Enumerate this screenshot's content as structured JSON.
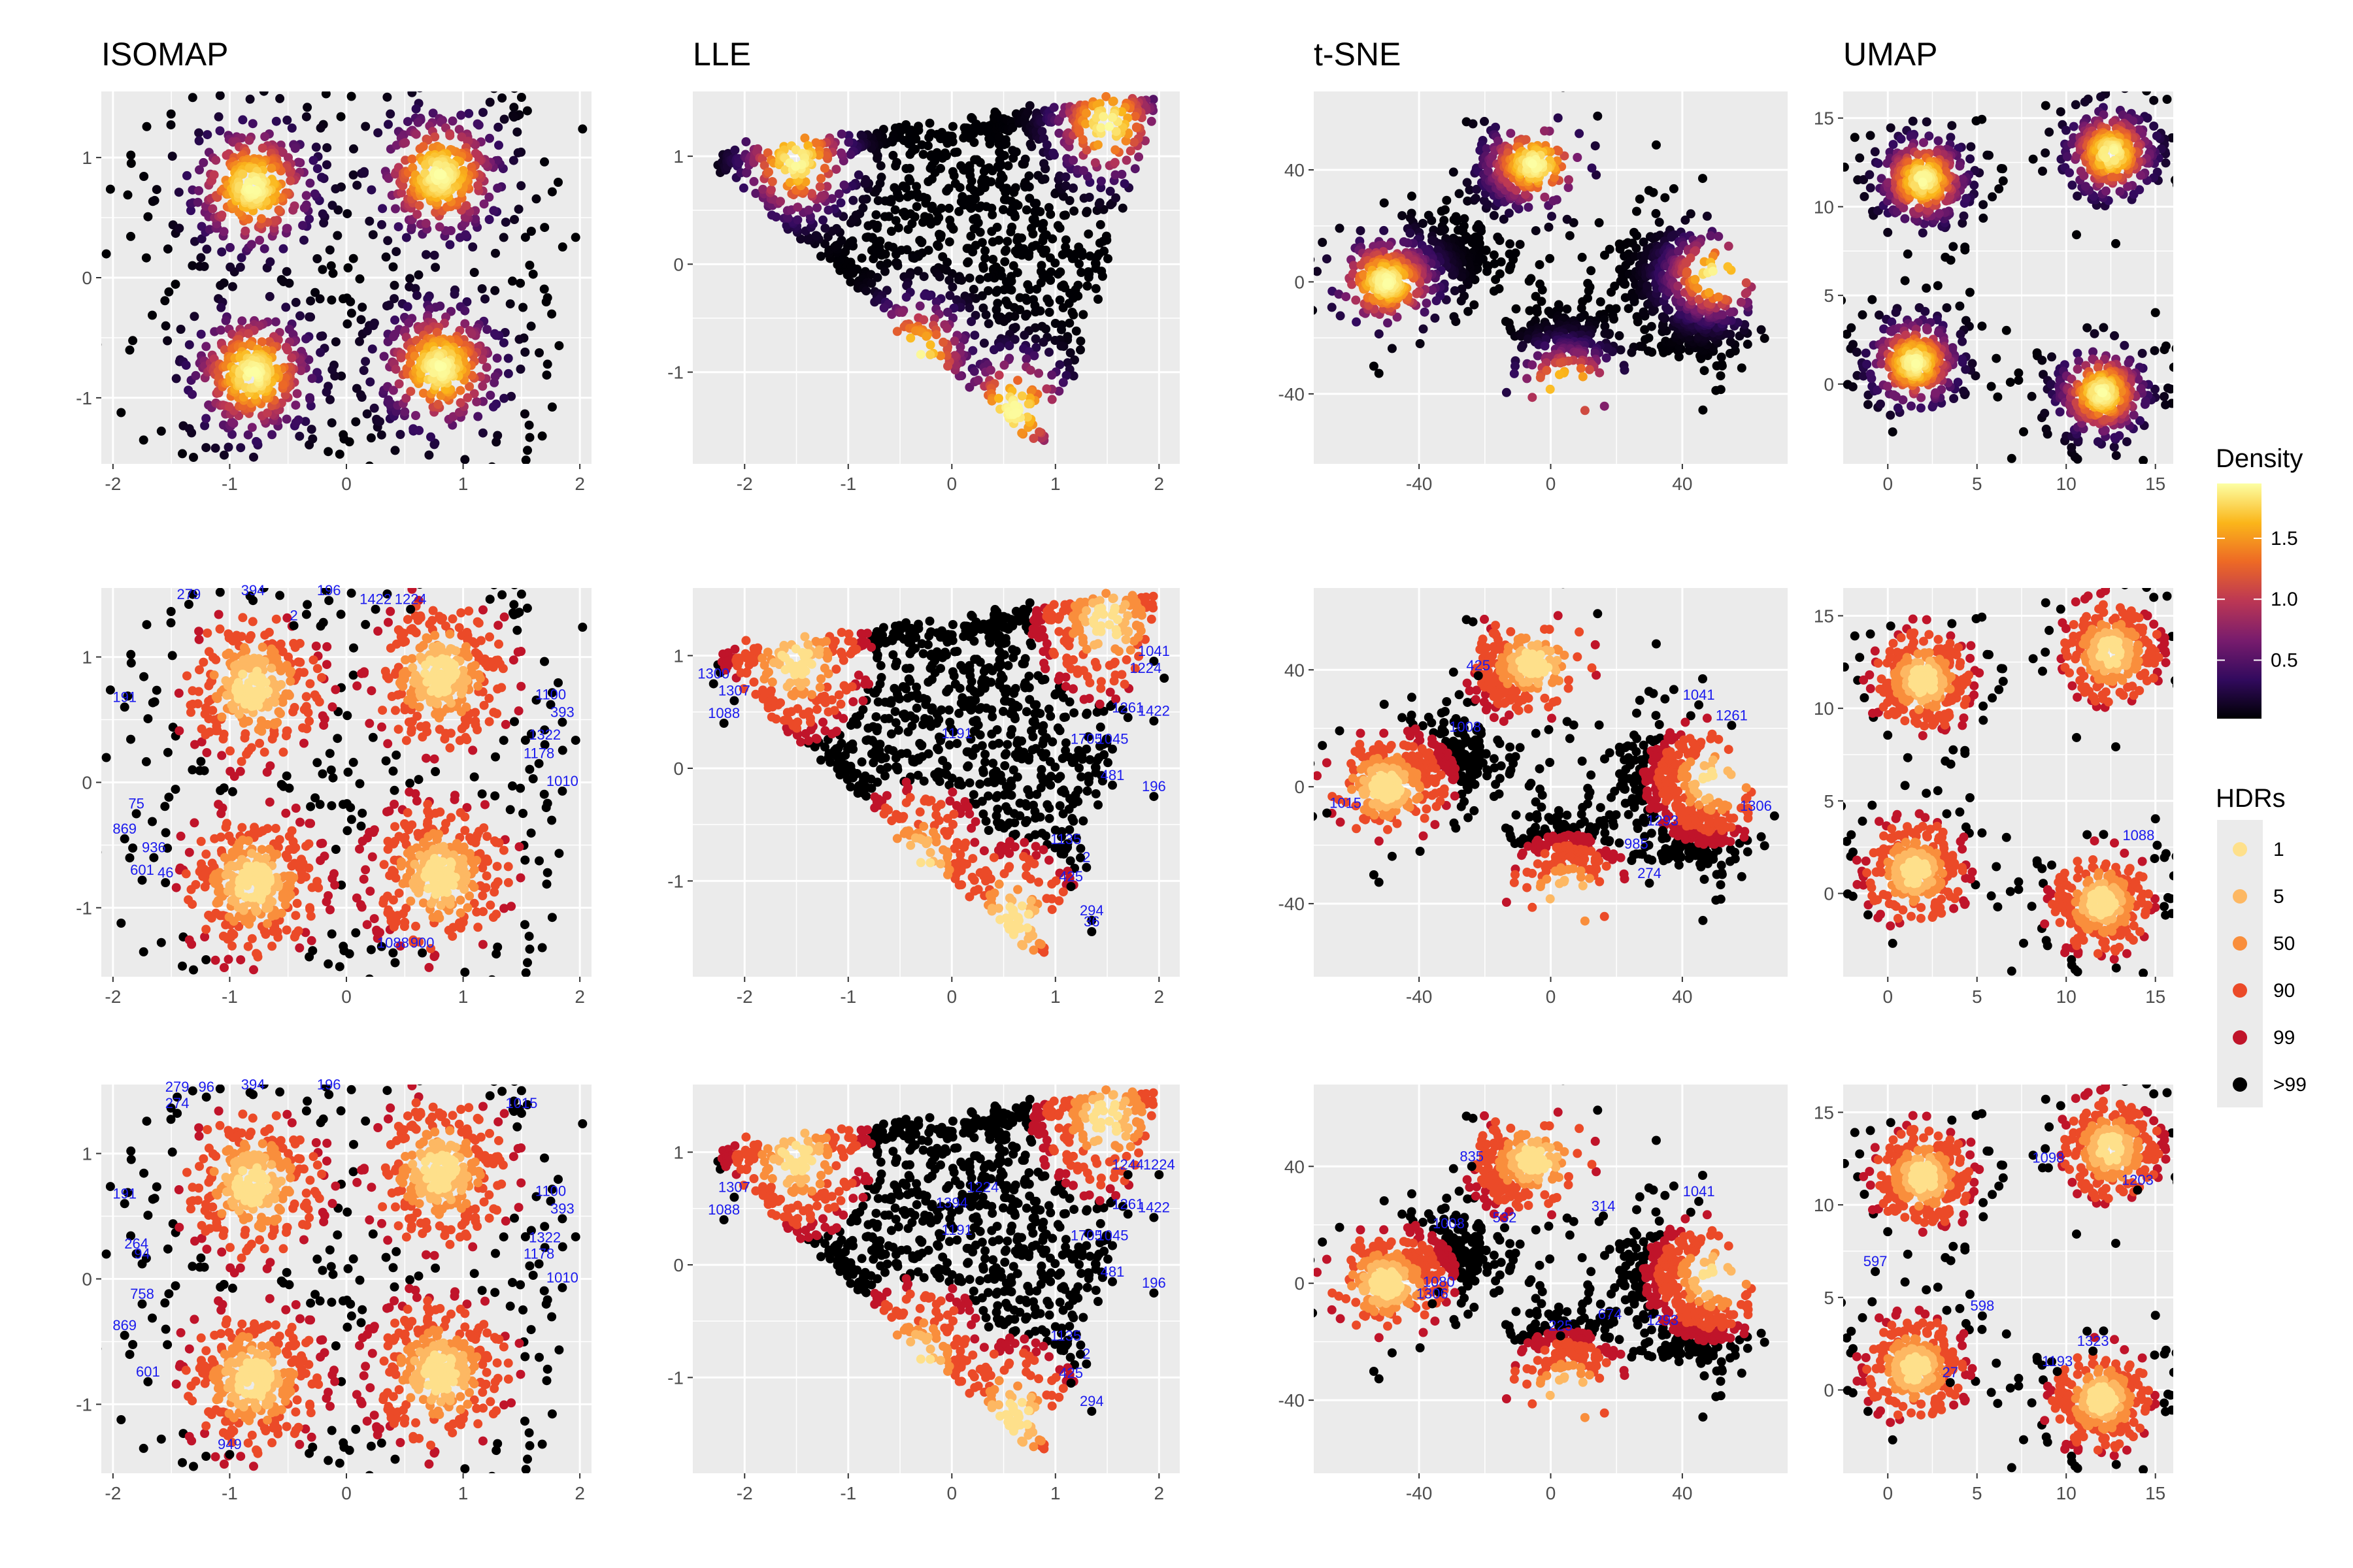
{
  "column_titles": [
    "ISOMAP",
    "LLE",
    "t-SNE",
    "UMAP"
  ],
  "legend": {
    "density_title": "Density",
    "density_ticks": [
      "1.5",
      "1.0",
      "0.5"
    ],
    "density_tick_values": [
      1.5,
      1.0,
      0.5
    ],
    "density_range": [
      0.02,
      1.95
    ],
    "density_gradient": [
      "#000004",
      "#320a5e",
      "#781c6d",
      "#bc3754",
      "#ed6925",
      "#fbb61a",
      "#fcffa4"
    ],
    "hdr_title": "HDRs",
    "hdr_levels": [
      {
        "label": "1",
        "color": "#fee08b"
      },
      {
        "label": "5",
        "color": "#fdb863"
      },
      {
        "label": "50",
        "color": "#f98e3c"
      },
      {
        "label": "90",
        "color": "#eb4a28"
      },
      {
        "label": "99",
        "color": "#c0142a"
      },
      {
        "label": ">99",
        "color": "#000000"
      }
    ]
  },
  "chart_data": [
    {
      "type": "scatter",
      "row": 0,
      "col": 0,
      "title": "ISOMAP",
      "color_mode": "density",
      "xlim": [
        -2.1,
        2.1
      ],
      "ylim": [
        -1.55,
        1.55
      ],
      "xticks": [
        -2,
        -1,
        0,
        1,
        2
      ],
      "xtick_labels": [
        "-2",
        "-1",
        "0",
        "1",
        "2"
      ],
      "yticks": [
        -1,
        0,
        1
      ],
      "ytick_labels": [
        "-1",
        "0",
        "1"
      ],
      "point_labels": []
    },
    {
      "type": "scatter",
      "row": 0,
      "col": 1,
      "title": "LLE",
      "color_mode": "density",
      "xlim": [
        -2.5,
        2.2
      ],
      "ylim": [
        -1.85,
        1.6
      ],
      "xticks": [
        -2,
        -1,
        0,
        1,
        2
      ],
      "xtick_labels": [
        "-2",
        "-1",
        "0",
        "1",
        "2"
      ],
      "yticks": [
        -1,
        0,
        1
      ],
      "ytick_labels": [
        "-1",
        "0",
        "1"
      ],
      "point_labels": []
    },
    {
      "type": "scatter",
      "row": 0,
      "col": 2,
      "title": "t-SNE",
      "color_mode": "density",
      "xlim": [
        -72,
        72
      ],
      "ylim": [
        -65,
        68
      ],
      "xticks": [
        -40,
        0,
        40
      ],
      "xtick_labels": [
        "-40",
        "0",
        "40"
      ],
      "yticks": [
        -40,
        0,
        40
      ],
      "ytick_labels": [
        "-40",
        "0",
        "40"
      ],
      "point_labels": []
    },
    {
      "type": "scatter",
      "row": 0,
      "col": 3,
      "title": "UMAP",
      "color_mode": "density",
      "xlim": [
        -2.5,
        16
      ],
      "ylim": [
        -4.5,
        16.5
      ],
      "xticks": [
        0,
        5,
        10,
        15
      ],
      "xtick_labels": [
        "0",
        "5",
        "10",
        "15"
      ],
      "yticks": [
        0,
        5,
        10,
        15
      ],
      "ytick_labels": [
        "0",
        "5",
        "10",
        "15"
      ],
      "point_labels": []
    },
    {
      "type": "scatter",
      "row": 1,
      "col": 0,
      "color_mode": "hdr",
      "xlim": [
        -2.1,
        2.1
      ],
      "ylim": [
        -1.55,
        1.55
      ],
      "xticks": [
        -2,
        -1,
        0,
        1,
        2
      ],
      "xtick_labels": [
        "-2",
        "-1",
        "0",
        "1",
        "2"
      ],
      "yticks": [
        -1,
        0,
        1
      ],
      "ytick_labels": [
        "-1",
        "0",
        "1"
      ],
      "point_labels": [
        {
          "text": "279",
          "x": -1.35,
          "y": 1.42
        },
        {
          "text": "394",
          "x": -0.8,
          "y": 1.45
        },
        {
          "text": "196",
          "x": -0.15,
          "y": 1.45
        },
        {
          "text": "2",
          "x": -0.45,
          "y": 1.25
        },
        {
          "text": "1422",
          "x": 0.25,
          "y": 1.38
        },
        {
          "text": "1224",
          "x": 0.55,
          "y": 1.38
        },
        {
          "text": "191",
          "x": -1.9,
          "y": 0.6
        },
        {
          "text": "1100",
          "x": 1.75,
          "y": 0.62
        },
        {
          "text": "393",
          "x": 1.85,
          "y": 0.48
        },
        {
          "text": "1322",
          "x": 1.7,
          "y": 0.3
        },
        {
          "text": "1178",
          "x": 1.65,
          "y": 0.15
        },
        {
          "text": "1010",
          "x": 1.85,
          "y": -0.07
        },
        {
          "text": "75",
          "x": -1.8,
          "y": -0.25
        },
        {
          "text": "869",
          "x": -1.9,
          "y": -0.45
        },
        {
          "text": "936",
          "x": -1.65,
          "y": -0.6
        },
        {
          "text": "601",
          "x": -1.75,
          "y": -0.78
        },
        {
          "text": "46",
          "x": -1.55,
          "y": -0.8
        },
        {
          "text": "1088",
          "x": 0.4,
          "y": -1.36
        },
        {
          "text": "900",
          "x": 0.65,
          "y": -1.36
        }
      ]
    },
    {
      "type": "scatter",
      "row": 1,
      "col": 1,
      "color_mode": "hdr",
      "xlim": [
        -2.5,
        2.2
      ],
      "ylim": [
        -1.85,
        1.6
      ],
      "xticks": [
        -2,
        -1,
        0,
        1,
        2
      ],
      "xtick_labels": [
        "-2",
        "-1",
        "0",
        "1",
        "2"
      ],
      "yticks": [
        -1,
        0,
        1
      ],
      "ytick_labels": [
        "-1",
        "0",
        "1"
      ],
      "point_labels": [
        {
          "text": "1300",
          "x": -2.3,
          "y": 0.75
        },
        {
          "text": "1307",
          "x": -2.1,
          "y": 0.6
        },
        {
          "text": "1088",
          "x": -2.2,
          "y": 0.4
        },
        {
          "text": "1191",
          "x": 0.05,
          "y": 0.22
        },
        {
          "text": "1041",
          "x": 1.95,
          "y": 0.95
        },
        {
          "text": "1224",
          "x": 2.05,
          "y": 0.8
        },
        {
          "text": "1261",
          "x": 1.7,
          "y": 0.45
        },
        {
          "text": "1422",
          "x": 1.95,
          "y": 0.42
        },
        {
          "text": "1705",
          "x": 1.3,
          "y": 0.17
        },
        {
          "text": "1045",
          "x": 1.55,
          "y": 0.17
        },
        {
          "text": "481",
          "x": 1.55,
          "y": -0.15
        },
        {
          "text": "196",
          "x": 1.95,
          "y": -0.25
        },
        {
          "text": "1135",
          "x": 1.1,
          "y": -0.72
        },
        {
          "text": "2",
          "x": 1.3,
          "y": -0.88
        },
        {
          "text": "425",
          "x": 1.15,
          "y": -1.05
        },
        {
          "text": "294",
          "x": 1.35,
          "y": -1.35
        },
        {
          "text": "36",
          "x": 1.35,
          "y": -1.45
        }
      ]
    },
    {
      "type": "scatter",
      "row": 1,
      "col": 2,
      "color_mode": "hdr",
      "xlim": [
        -72,
        72
      ],
      "ylim": [
        -65,
        68
      ],
      "xticks": [
        -40,
        0,
        40
      ],
      "xtick_labels": [
        "-40",
        "0",
        "40"
      ],
      "yticks": [
        -40,
        0,
        40
      ],
      "ytick_labels": [
        "-40",
        "0",
        "40"
      ],
      "point_labels": [
        {
          "text": "425",
          "x": -22,
          "y": 38
        },
        {
          "text": "1008",
          "x": -26,
          "y": 17
        },
        {
          "text": "1041",
          "x": 45,
          "y": 28
        },
        {
          "text": "1261",
          "x": 55,
          "y": 21
        },
        {
          "text": "1015",
          "x": -68,
          "y": -9
        },
        {
          "text": "1293",
          "x": 34,
          "y": -15
        },
        {
          "text": "1306",
          "x": 68,
          "y": -10
        },
        {
          "text": "985",
          "x": 26,
          "y": -23
        },
        {
          "text": "274",
          "x": 30,
          "y": -33
        }
      ]
    },
    {
      "type": "scatter",
      "row": 1,
      "col": 3,
      "color_mode": "hdr",
      "xlim": [
        -2.5,
        16
      ],
      "ylim": [
        -4.5,
        16.5
      ],
      "xticks": [
        0,
        5,
        10,
        15
      ],
      "xtick_labels": [
        "0",
        "5",
        "10",
        "15"
      ],
      "yticks": [
        0,
        5,
        10,
        15
      ],
      "ytick_labels": [
        "0",
        "5",
        "10",
        "15"
      ],
      "point_labels": [
        {
          "text": "1088",
          "x": 15.1,
          "y": 2.6
        }
      ]
    },
    {
      "type": "scatter",
      "row": 2,
      "col": 0,
      "color_mode": "hdr",
      "xlim": [
        -2.1,
        2.1
      ],
      "ylim": [
        -1.55,
        1.55
      ],
      "xticks": [
        -2,
        -1,
        0,
        1,
        2
      ],
      "xtick_labels": [
        "-2",
        "-1",
        "0",
        "1",
        "2"
      ],
      "yticks": [
        -1,
        0,
        1
      ],
      "ytick_labels": [
        "-1",
        "0",
        "1"
      ],
      "point_labels": [
        {
          "text": "279",
          "x": -1.45,
          "y": 1.45
        },
        {
          "text": "96",
          "x": -1.2,
          "y": 1.45
        },
        {
          "text": "394",
          "x": -0.8,
          "y": 1.47
        },
        {
          "text": "196",
          "x": -0.15,
          "y": 1.47
        },
        {
          "text": "274",
          "x": -1.45,
          "y": 1.32
        },
        {
          "text": "1015",
          "x": 1.5,
          "y": 1.32
        },
        {
          "text": "191",
          "x": -1.9,
          "y": 0.6
        },
        {
          "text": "1100",
          "x": 1.75,
          "y": 0.62
        },
        {
          "text": "393",
          "x": 1.85,
          "y": 0.48
        },
        {
          "text": "264",
          "x": -1.8,
          "y": 0.2
        },
        {
          "text": "94",
          "x": -1.75,
          "y": 0.12
        },
        {
          "text": "1322",
          "x": 1.7,
          "y": 0.25
        },
        {
          "text": "1178",
          "x": 1.65,
          "y": 0.12
        },
        {
          "text": "1010",
          "x": 1.85,
          "y": -0.07
        },
        {
          "text": "758",
          "x": -1.75,
          "y": -0.2
        },
        {
          "text": "869",
          "x": -1.9,
          "y": -0.45
        },
        {
          "text": "601",
          "x": -1.7,
          "y": -0.82
        },
        {
          "text": "949",
          "x": -1.0,
          "y": -1.4
        }
      ]
    },
    {
      "type": "scatter",
      "row": 2,
      "col": 1,
      "color_mode": "hdr",
      "xlim": [
        -2.5,
        2.2
      ],
      "ylim": [
        -1.85,
        1.6
      ],
      "xticks": [
        -2,
        -1,
        0,
        1,
        2
      ],
      "xtick_labels": [
        "-2",
        "-1",
        "0",
        "1",
        "2"
      ],
      "yticks": [
        -1,
        0,
        1
      ],
      "ytick_labels": [
        "-1",
        "0",
        "1"
      ],
      "point_labels": [
        {
          "text": "1307",
          "x": -2.1,
          "y": 0.6
        },
        {
          "text": "1088",
          "x": -2.2,
          "y": 0.4
        },
        {
          "text": "1224",
          "x": 0.3,
          "y": 0.6
        },
        {
          "text": "1394",
          "x": 0.0,
          "y": 0.46
        },
        {
          "text": "1191",
          "x": 0.05,
          "y": 0.22
        },
        {
          "text": "1244",
          "x": 1.7,
          "y": 0.8
        },
        {
          "text": "1224",
          "x": 2.0,
          "y": 0.8
        },
        {
          "text": "1261",
          "x": 1.7,
          "y": 0.45
        },
        {
          "text": "1422",
          "x": 1.95,
          "y": 0.42
        },
        {
          "text": "1705",
          "x": 1.3,
          "y": 0.17
        },
        {
          "text": "1045",
          "x": 1.55,
          "y": 0.17
        },
        {
          "text": "481",
          "x": 1.55,
          "y": -0.15
        },
        {
          "text": "196",
          "x": 1.95,
          "y": -0.25
        },
        {
          "text": "1135",
          "x": 1.1,
          "y": -0.72
        },
        {
          "text": "2",
          "x": 1.3,
          "y": -0.88
        },
        {
          "text": "425",
          "x": 1.15,
          "y": -1.05
        },
        {
          "text": "294",
          "x": 1.35,
          "y": -1.3
        }
      ]
    },
    {
      "type": "scatter",
      "row": 2,
      "col": 2,
      "color_mode": "hdr",
      "xlim": [
        -72,
        72
      ],
      "ylim": [
        -65,
        68
      ],
      "xticks": [
        -40,
        0,
        40
      ],
      "xtick_labels": [
        "-40",
        "0",
        "40"
      ],
      "yticks": [
        -40,
        0,
        40
      ],
      "ytick_labels": [
        "-40",
        "0",
        "40"
      ],
      "point_labels": [
        {
          "text": "835",
          "x": -24,
          "y": 40
        },
        {
          "text": "1008",
          "x": -31,
          "y": 17
        },
        {
          "text": "532",
          "x": -14,
          "y": 19
        },
        {
          "text": "314",
          "x": 16,
          "y": 23
        },
        {
          "text": "1041",
          "x": 45,
          "y": 28
        },
        {
          "text": "1080",
          "x": -34,
          "y": -3
        },
        {
          "text": "1306",
          "x": -36,
          "y": -7
        },
        {
          "text": "674",
          "x": 18,
          "y": -14
        },
        {
          "text": "1293",
          "x": 34,
          "y": -16
        },
        {
          "text": "225",
          "x": 3,
          "y": -18
        }
      ]
    },
    {
      "type": "scatter",
      "row": 2,
      "col": 3,
      "color_mode": "hdr",
      "xlim": [
        -2.5,
        16
      ],
      "ylim": [
        -4.5,
        16.5
      ],
      "xticks": [
        0,
        5,
        10,
        15
      ],
      "xtick_labels": [
        "0",
        "5",
        "10",
        "15"
      ],
      "yticks": [
        0,
        5,
        10,
        15
      ],
      "ytick_labels": [
        "0",
        "5",
        "10",
        "15"
      ],
      "point_labels": [
        {
          "text": "1098",
          "x": 9.0,
          "y": 12.0
        },
        {
          "text": "1203",
          "x": 14.0,
          "y": 10.8
        },
        {
          "text": "597",
          "x": -0.7,
          "y": 6.4
        },
        {
          "text": "598",
          "x": 5.3,
          "y": 4.0
        },
        {
          "text": "27",
          "x": 3.5,
          "y": 0.4
        },
        {
          "text": "1193",
          "x": 9.5,
          "y": 1.0
        },
        {
          "text": "1323",
          "x": 11.5,
          "y": 2.1
        }
      ]
    }
  ]
}
